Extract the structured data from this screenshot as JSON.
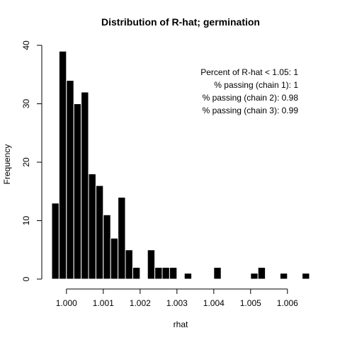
{
  "chart_data": {
    "type": "bar",
    "title": "Distribution of R-hat; germination",
    "xlabel": "rhat",
    "ylabel": "Frequency",
    "bin_width": 0.0002,
    "bin_starts": [
      0.9996,
      0.9998,
      1.0,
      1.0002,
      1.0004,
      1.0006,
      1.0008,
      1.001,
      1.0012,
      1.0014,
      1.0016,
      1.0018,
      1.002,
      1.0022,
      1.0024,
      1.0026,
      1.0028,
      1.003,
      1.0032,
      1.0034,
      1.0036,
      1.0038,
      1.004,
      1.0042,
      1.0044,
      1.0046,
      1.0048,
      1.005,
      1.0052,
      1.0054,
      1.0056,
      1.0058,
      1.006,
      1.0062,
      1.0064
    ],
    "values": [
      13,
      39,
      34,
      30,
      32,
      18,
      16,
      11,
      7,
      14,
      5,
      2,
      0,
      5,
      2,
      2,
      2,
      0,
      1,
      0,
      0,
      0,
      2,
      0,
      0,
      0,
      0,
      1,
      2,
      0,
      0,
      1,
      0,
      0,
      1
    ],
    "xlim": [
      0.9996,
      1.0066
    ],
    "ylim": [
      0,
      40
    ],
    "x_ticks": [
      {
        "value": 1.0,
        "label": "1.000"
      },
      {
        "value": 1.001,
        "label": "1.001"
      },
      {
        "value": 1.002,
        "label": "1.002"
      },
      {
        "value": 1.003,
        "label": "1.003"
      },
      {
        "value": 1.004,
        "label": "1.004"
      },
      {
        "value": 1.005,
        "label": "1.005"
      },
      {
        "value": 1.006,
        "label": "1.006"
      }
    ],
    "y_ticks": [
      {
        "value": 0,
        "label": "0"
      },
      {
        "value": 10,
        "label": "10"
      },
      {
        "value": 20,
        "label": "20"
      },
      {
        "value": 30,
        "label": "30"
      },
      {
        "value": 40,
        "label": "40"
      }
    ],
    "annotations": [
      "Percent of R-hat < 1.05: 1",
      "% passing (chain 1): 1",
      "% passing (chain 2): 0.98",
      "% passing (chain 3): 0.99"
    ],
    "grid": false,
    "legend": "none"
  }
}
